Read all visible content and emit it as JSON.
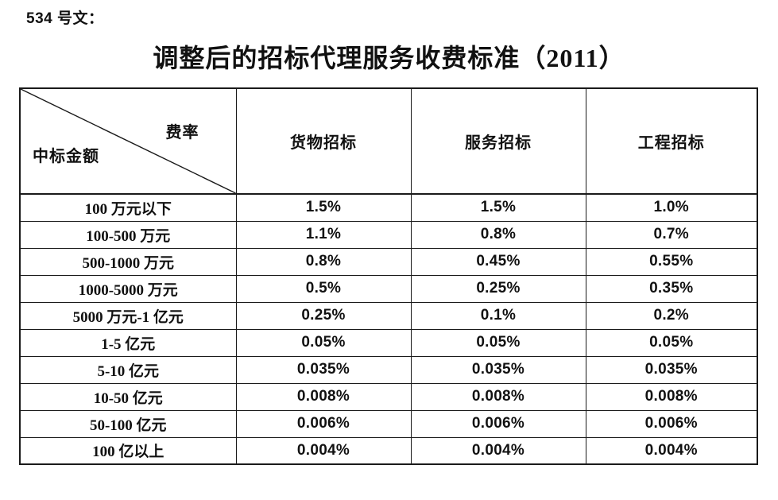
{
  "doc": {
    "ref_label": "534 号文：",
    "title": "调整后的招标代理服务收费标准（2011）"
  },
  "table": {
    "corner": {
      "top_right": "费率",
      "bottom_left": "中标金额"
    },
    "columns": [
      "货物招标",
      "服务招标",
      "工程招标"
    ],
    "rows": [
      {
        "label": "100 万元以下",
        "values": [
          "1.5%",
          "1.5%",
          "1.0%"
        ]
      },
      {
        "label": "100-500 万元",
        "values": [
          "1.1%",
          "0.8%",
          "0.7%"
        ]
      },
      {
        "label": "500-1000 万元",
        "values": [
          "0.8%",
          "0.45%",
          "0.55%"
        ]
      },
      {
        "label": "1000-5000 万元",
        "values": [
          "0.5%",
          "0.25%",
          "0.35%"
        ]
      },
      {
        "label": "5000 万元-1 亿元",
        "values": [
          "0.25%",
          "0.1%",
          "0.2%"
        ]
      },
      {
        "label": "1-5 亿元",
        "values": [
          "0.05%",
          "0.05%",
          "0.05%"
        ]
      },
      {
        "label": "5-10 亿元",
        "values": [
          "0.035%",
          "0.035%",
          "0.035%"
        ]
      },
      {
        "label": "10-50 亿元",
        "values": [
          "0.008%",
          "0.008%",
          "0.008%"
        ]
      },
      {
        "label": "50-100 亿元",
        "values": [
          "0.006%",
          "0.006%",
          "0.006%"
        ]
      },
      {
        "label": "100 亿以上",
        "values": [
          "0.004%",
          "0.004%",
          "0.004%"
        ]
      }
    ],
    "line_color": "#1a1a1a",
    "text_color": "#111111",
    "background_color": "#ffffff"
  }
}
